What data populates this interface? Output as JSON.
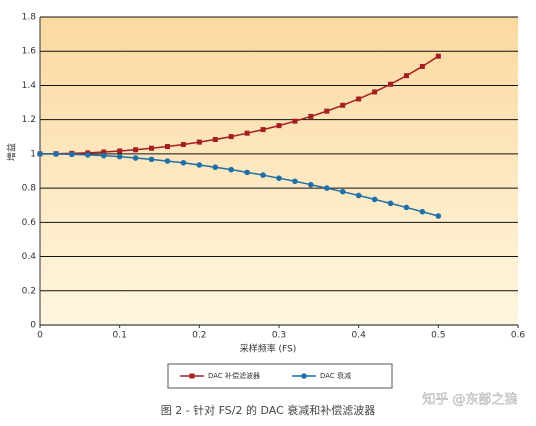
{
  "chart_data": {
    "type": "line",
    "xlabel": "采样频率 (FS)",
    "ylabel": "增益",
    "caption": "图 2 - 针对 FS/2 的 DAC 衰减和补偿滤波器",
    "watermark": "知乎 @东部之狼",
    "x": [
      0,
      0.02,
      0.04,
      0.06,
      0.08,
      0.1,
      0.12,
      0.14,
      0.16,
      0.18,
      0.2,
      0.22,
      0.24,
      0.26,
      0.28,
      0.3,
      0.32,
      0.34,
      0.36,
      0.38,
      0.4,
      0.42,
      0.44,
      0.46,
      0.48,
      0.5
    ],
    "series": [
      {
        "name": "DAC 补偿滤波器",
        "color": "#a41e22",
        "marker": "square",
        "values": [
          1,
          1.001,
          1.003,
          1.006,
          1.011,
          1.017,
          1.024,
          1.033,
          1.043,
          1.055,
          1.069,
          1.084,
          1.101,
          1.121,
          1.142,
          1.165,
          1.191,
          1.219,
          1.25,
          1.284,
          1.321,
          1.362,
          1.407,
          1.457,
          1.511,
          1.571
        ]
      },
      {
        "name": "DAC 衰减",
        "color": "#1f6fa8",
        "marker": "circle",
        "values": [
          1,
          0.999,
          0.997,
          0.994,
          0.99,
          0.984,
          0.976,
          0.968,
          0.958,
          0.948,
          0.935,
          0.922,
          0.908,
          0.892,
          0.876,
          0.858,
          0.84,
          0.82,
          0.8,
          0.779,
          0.757,
          0.734,
          0.711,
          0.687,
          0.662,
          0.637
        ]
      }
    ],
    "xlim": [
      0,
      0.6
    ],
    "xticks": [
      0,
      0.1,
      0.2,
      0.3,
      0.4,
      0.5,
      0.6
    ],
    "ylim": [
      0,
      1.8
    ],
    "yticks": [
      0,
      0.2,
      0.4,
      0.6,
      0.8,
      1,
      1.2,
      1.4,
      1.6,
      1.8
    ],
    "grid": true
  }
}
